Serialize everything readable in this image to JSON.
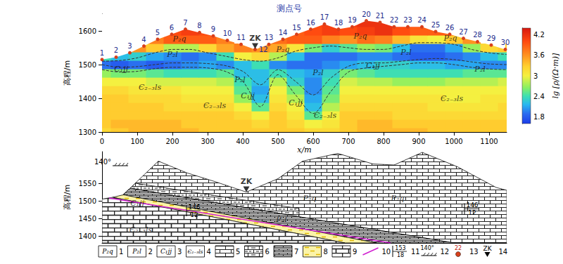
{
  "chart_data": [
    {
      "type": "heatmap",
      "title": "测点号",
      "xlabel": "x/m",
      "ylabel": "高程/m",
      "colorbar_label": "lg [ρ/(Ω·m)]",
      "xlim": [
        0,
        1150
      ],
      "xticks": [
        0,
        100,
        200,
        300,
        400,
        500,
        600,
        700,
        800,
        900,
        1000,
        1100
      ],
      "ylim": [
        1300,
        1650
      ],
      "yticks": [
        1300,
        1400,
        1500,
        1600
      ],
      "clim": [
        1.6,
        4.4
      ],
      "cticks": [
        1.8,
        2.4,
        3,
        3.6,
        4.2
      ],
      "x": [
        0,
        50,
        100,
        150,
        200,
        250,
        300,
        350,
        400,
        450,
        500,
        550,
        600,
        650,
        700,
        750,
        800,
        850,
        900,
        950,
        1000,
        1050,
        1100,
        1150
      ],
      "y": [
        1300,
        1325,
        1350,
        1375,
        1400,
        1425,
        1450,
        1475,
        1500,
        1525,
        1550,
        1575,
        1600,
        1625
      ],
      "cells": [
        [
          3.2,
          3.3,
          3.4,
          3.4,
          3.4,
          3.4,
          3.3,
          3.3,
          3.3,
          3.3,
          3.3,
          3.3,
          3.2,
          3.2,
          3.3,
          3.4,
          3.4,
          3.4,
          3.4,
          3.3,
          3.3,
          3.3,
          3.3,
          3.3
        ],
        [
          3.3,
          3.4,
          3.4,
          3.4,
          3.4,
          3.3,
          3.3,
          3.3,
          3.3,
          3.2,
          3.3,
          3.2,
          3.0,
          3.1,
          3.3,
          3.4,
          3.4,
          3.3,
          3.3,
          3.3,
          3.3,
          3.3,
          3.3,
          3.3
        ],
        [
          3.3,
          3.3,
          3.3,
          3.3,
          3.3,
          3.3,
          3.3,
          3.3,
          3.2,
          3.0,
          3.3,
          3.1,
          2.5,
          3.0,
          3.3,
          3.3,
          3.3,
          3.2,
          3.2,
          3.2,
          3.2,
          3.2,
          3.2,
          3.2
        ],
        [
          3.3,
          3.3,
          3.3,
          3.3,
          3.2,
          3.2,
          3.2,
          3.2,
          3.0,
          2.5,
          3.2,
          3.0,
          2.2,
          2.8,
          3.2,
          3.2,
          3.2,
          3.2,
          3.2,
          3.1,
          3.1,
          3.1,
          3.1,
          3.2
        ],
        [
          3.3,
          3.3,
          3.2,
          3.2,
          3.2,
          3.1,
          3.1,
          3.1,
          2.7,
          2.2,
          3.1,
          2.8,
          2.1,
          2.6,
          3.1,
          3.1,
          3.1,
          3.1,
          3.1,
          3.1,
          3.0,
          3.0,
          3.1,
          3.1
        ],
        [
          3.2,
          3.2,
          3.1,
          3.1,
          3.1,
          3.0,
          3.0,
          3.0,
          2.5,
          2.1,
          3.0,
          2.6,
          2.0,
          2.5,
          3.0,
          3.0,
          3.0,
          3.0,
          3.0,
          3.0,
          3.0,
          3.0,
          3.0,
          3.0
        ],
        [
          3.0,
          3.0,
          3.0,
          2.9,
          2.9,
          2.9,
          2.9,
          2.8,
          2.4,
          2.2,
          2.8,
          2.3,
          2.0,
          2.4,
          2.9,
          2.8,
          2.8,
          2.7,
          2.7,
          2.7,
          2.8,
          2.8,
          2.8,
          2.9
        ],
        [
          2.7,
          2.6,
          2.6,
          2.5,
          2.4,
          2.4,
          2.4,
          2.5,
          2.2,
          2.2,
          2.4,
          2.2,
          2.1,
          2.3,
          2.6,
          2.5,
          2.4,
          2.4,
          2.4,
          2.4,
          2.4,
          2.5,
          2.5,
          2.5
        ],
        [
          1.9,
          1.8,
          1.9,
          1.8,
          1.9,
          2.0,
          2.1,
          2.0,
          2.2,
          2.4,
          2.0,
          1.9,
          1.9,
          2.0,
          2.1,
          2.2,
          2.3,
          2.3,
          2.2,
          2.2,
          2.1,
          2.1,
          2.0,
          2.0
        ],
        [
          2.4,
          2.2,
          2.3,
          2.1,
          2.0,
          1.9,
          2.0,
          2.4,
          3.0,
          3.2,
          2.8,
          2.2,
          1.9,
          1.9,
          1.9,
          2.0,
          2.0,
          1.9,
          1.8,
          1.8,
          1.9,
          2.0,
          2.2,
          2.4
        ],
        [
          null,
          null,
          3.6,
          3.3,
          2.8,
          2.8,
          3.2,
          3.5,
          3.7,
          3.6,
          3.5,
          3.1,
          2.6,
          2.3,
          2.5,
          2.7,
          2.6,
          2.2,
          1.9,
          1.9,
          2.1,
          2.7,
          3.2,
          3.3
        ],
        [
          null,
          null,
          null,
          3.7,
          3.9,
          3.9,
          3.9,
          3.7,
          null,
          null,
          3.8,
          3.9,
          3.9,
          3.7,
          3.6,
          3.8,
          3.7,
          3.4,
          3.1,
          3.0,
          3.3,
          3.6,
          null,
          null
        ],
        [
          null,
          null,
          null,
          null,
          4.0,
          4.1,
          4.0,
          null,
          null,
          null,
          null,
          3.9,
          4.0,
          4.1,
          4.0,
          4.1,
          4.2,
          4.0,
          3.9,
          3.9,
          3.8,
          null,
          null,
          null
        ],
        [
          null,
          null,
          null,
          null,
          null,
          null,
          null,
          null,
          null,
          null,
          null,
          null,
          4.0,
          4.1,
          4.1,
          4.2,
          4.2,
          4.1,
          4.0,
          null,
          null,
          null,
          null,
          null
        ]
      ],
      "stations": {
        "color": "#d8401c",
        "names": [
          "1",
          "2",
          "3",
          "4",
          "5",
          "6",
          "7",
          "8",
          "9",
          "10",
          "11",
          "12",
          "13",
          "14",
          "15",
          "16",
          "17",
          "18",
          "19",
          "20",
          "21",
          "22",
          "23",
          "24",
          "25",
          "26",
          "27",
          "28",
          "29",
          "30"
        ],
        "x": [
          0,
          40,
          79,
          119,
          158,
          198,
          237,
          277,
          316,
          356,
          395,
          435,
          474,
          514,
          553,
          593,
          632,
          672,
          711,
          751,
          790,
          830,
          869,
          909,
          948,
          988,
          1027,
          1067,
          1106,
          1146
        ],
        "y": [
          1515,
          1522,
          1535,
          1555,
          1575,
          1590,
          1605,
          1595,
          1585,
          1572,
          1560,
          1545,
          1560,
          1575,
          1590,
          1605,
          1620,
          1605,
          1612,
          1630,
          1625,
          1612,
          1612,
          1612,
          1598,
          1590,
          1578,
          1568,
          1558,
          1545
        ]
      },
      "boundaries": [
        {
          "line_style": "dashed",
          "x": [
            0,
            50,
            100,
            150,
            200,
            250,
            300,
            350,
            400,
            450,
            500,
            550,
            600,
            650,
            700,
            750,
            800,
            850,
            900,
            950,
            1000,
            1050,
            1100,
            1150
          ],
          "y": [
            1510,
            1512,
            1520,
            1535,
            1545,
            1545,
            1535,
            1525,
            1515,
            1510,
            1520,
            1540,
            1550,
            1555,
            1550,
            1545,
            1545,
            1555,
            1565,
            1565,
            1560,
            1545,
            1535,
            1530
          ]
        },
        {
          "line_style": "dashed",
          "x": [
            0,
            50,
            100,
            150,
            200,
            250,
            300,
            350,
            400,
            450,
            500,
            550,
            600,
            650,
            700,
            750,
            800,
            850,
            900,
            950,
            1000,
            1050,
            1100,
            1150
          ],
          "y": [
            1500,
            1492,
            1494,
            1500,
            1505,
            1505,
            1503,
            1497,
            1480,
            1440,
            1485,
            1450,
            1410,
            1460,
            1495,
            1505,
            1505,
            1510,
            1515,
            1518,
            1515,
            1508,
            1502,
            1500
          ]
        },
        {
          "line_style": "dashed",
          "x": [
            0,
            50,
            100,
            150,
            200,
            250,
            300,
            350,
            400,
            450,
            500,
            550,
            600,
            650,
            700,
            750,
            800,
            850,
            900,
            950,
            1000,
            1050,
            1100,
            1150
          ],
          "y": [
            1485,
            1478,
            1480,
            1488,
            1492,
            1492,
            1490,
            1480,
            1450,
            1375,
            1470,
            1410,
            1355,
            1420,
            1478,
            1490,
            1495,
            1500,
            1505,
            1505,
            1500,
            1492,
            1487,
            1485
          ]
        }
      ],
      "annotations": [
        {
          "text": "P₂q",
          "x": 220,
          "y": 1577
        },
        {
          "text": "P₂l",
          "x": 200,
          "y": 1531
        },
        {
          "text": "C₁jj",
          "x": 54,
          "y": 1487
        },
        {
          "text": "Є₂₋₃ls",
          "x": 136,
          "y": 1433
        },
        {
          "text": "ZK",
          "x": 435,
          "y": 1555,
          "marker": "triangle"
        },
        {
          "text": "P₂q",
          "x": 514,
          "y": 1545
        },
        {
          "text": "P₂l",
          "x": 392,
          "y": 1456
        },
        {
          "text": "C₁jj",
          "x": 414,
          "y": 1408
        },
        {
          "text": "Є₂₋₃ls",
          "x": 320,
          "y": 1378
        },
        {
          "text": "P₂l",
          "x": 614,
          "y": 1477
        },
        {
          "text": "C₁jj",
          "x": 550,
          "y": 1386
        },
        {
          "text": "Є₂₋₃ls",
          "x": 634,
          "y": 1348
        },
        {
          "text": "P₂q",
          "x": 734,
          "y": 1585
        },
        {
          "text": "C₁jj",
          "x": 770,
          "y": 1496
        },
        {
          "text": "P₂l",
          "x": 864,
          "y": 1537
        },
        {
          "text": "P₂q",
          "x": 990,
          "y": 1578
        },
        {
          "text": "P₂l",
          "x": 1074,
          "y": 1486
        },
        {
          "text": "Є₂₋₃ls",
          "x": 994,
          "y": 1400
        }
      ]
    },
    {
      "type": "section",
      "ylabel": "高程/m",
      "xlim": [
        0,
        1150
      ],
      "ylim": [
        1380,
        1640
      ],
      "yticks": [
        1400,
        1450,
        1500,
        1550
      ],
      "tick_labels": "y",
      "units": [
        {
          "item": 5,
          "x": [
            60,
            160,
            240,
            320,
            410,
            500,
            570,
            670,
            770,
            830,
            910,
            1010,
            1120,
            1150,
            1150,
            1000,
            80
          ],
          "y": [
            1517,
            1613,
            1580,
            1555,
            1525,
            1563,
            1613,
            1635,
            1605,
            1602,
            1638,
            1597,
            1538,
            1530,
            1380,
            1380,
            1536
          ]
        },
        {
          "item": 6,
          "x": [
            80,
            95,
            560,
            560
          ],
          "y": [
            1536,
            1550,
            1478,
            1455
          ]
        },
        {
          "item": 7,
          "x": [
            60,
            80,
            1000,
            780
          ],
          "y": [
            1517,
            1536,
            1380,
            1380
          ]
        },
        {
          "item": 8,
          "x": [
            30,
            60,
            780,
            690
          ],
          "y": [
            1510,
            1517,
            1380,
            1380
          ]
        },
        {
          "item": 9,
          "x": [
            0,
            0,
            30,
            690
          ],
          "y": [
            1380,
            1505,
            1510,
            1380
          ]
        }
      ],
      "lines": [
        {
          "item": 10,
          "color": "#d020d0",
          "x": [
            20,
            820
          ],
          "y": [
            1508,
            1380
          ]
        }
      ],
      "attitudes": [
        {
          "dip_direction": 146,
          "dip": 12,
          "x": 240,
          "y": 1472
        },
        {
          "dip_direction": 146,
          "dip": 12,
          "x": 1030,
          "y": 1477
        }
      ],
      "strike": {
        "text": "140°",
        "x": 30,
        "y": 1600
      },
      "annotations": [
        {
          "text": "ZK",
          "x": 410,
          "y": 1525,
          "marker": "triangle"
        },
        {
          "text": "P₂q",
          "x": 590,
          "y": 1508
        },
        {
          "text": "P₂q",
          "x": 840,
          "y": 1508
        },
        {
          "text": "P₂l",
          "x": 510,
          "y": 1447
        },
        {
          "text": "C₁jj",
          "x": 100,
          "y": 1493
        },
        {
          "text": "Є₂₋₃ls",
          "x": 110,
          "y": 1418
        }
      ],
      "legend_items": [
        {
          "number": 1,
          "text": "P₂q"
        },
        {
          "number": 2,
          "text": "P₂l"
        },
        {
          "number": 3,
          "text": "C₁jj"
        },
        {
          "number": 4,
          "text": "Є₂₋₃ls"
        },
        {
          "number": 5
        },
        {
          "number": 6
        },
        {
          "number": 7
        },
        {
          "number": 8
        },
        {
          "number": 9
        },
        {
          "number": 10
        },
        {
          "number": 11,
          "dip_direction": 153,
          "dip": 18
        },
        {
          "number": 12,
          "text": "140°"
        },
        {
          "number": 13,
          "text": "22"
        },
        {
          "number": 14,
          "text": "ZK"
        }
      ]
    }
  ]
}
